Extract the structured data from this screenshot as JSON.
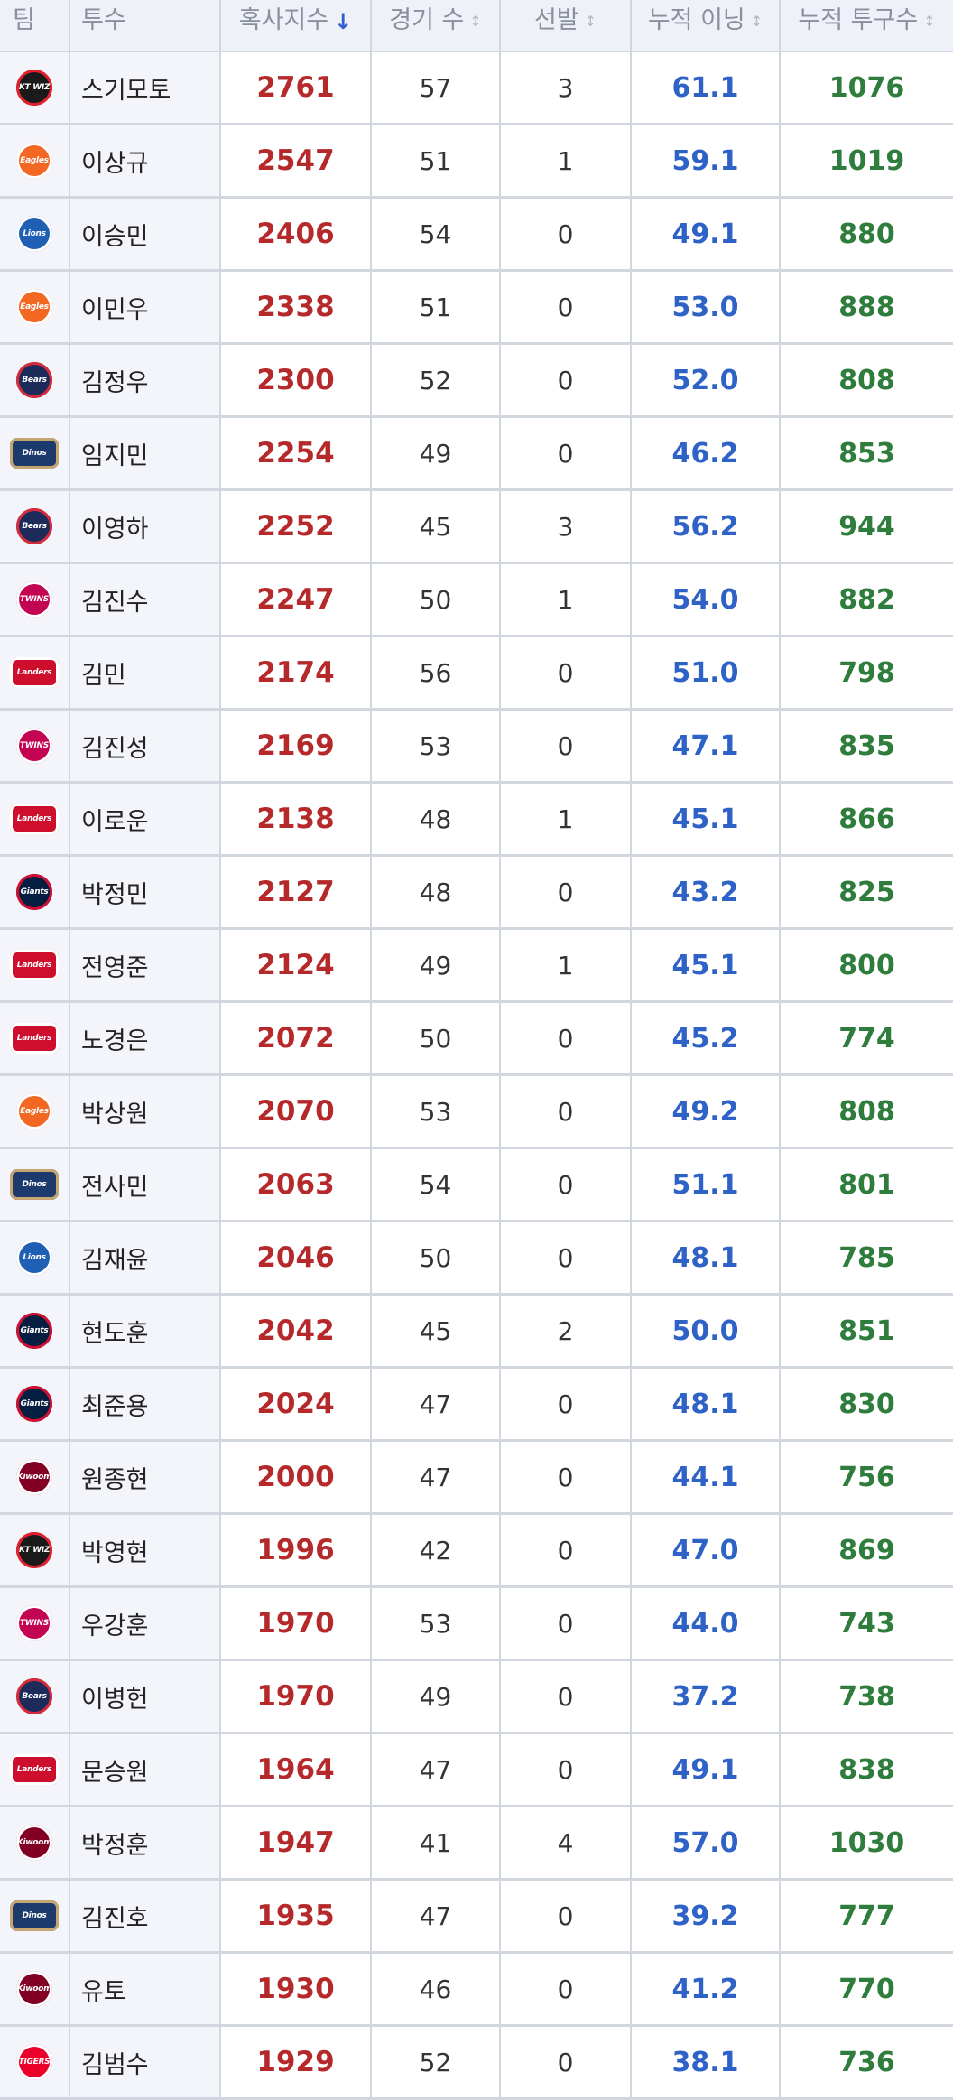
{
  "headers": {
    "team": "팀",
    "pitcher": "투수",
    "index": "혹사지수",
    "games": "경기 수",
    "starts": "선발",
    "innings": "누적 이닝",
    "pitches": "누적 투구수"
  },
  "sort_icons": {
    "active": "arrow-down-icon",
    "inactive": "sort-arrows-icon"
  },
  "team_logos": {
    "wiz": {
      "text": "KT WIZ",
      "color": "#1a1a1a",
      "accent": "#e5202e"
    },
    "eagles": {
      "text": "Eagles",
      "color": "#f26722",
      "accent": "#ffffff"
    },
    "lions": {
      "text": "Lions",
      "color": "#1f5fb4",
      "accent": "#ffffff"
    },
    "bears": {
      "text": "Bears",
      "color": "#1c2b5a",
      "accent": "#d52b3a"
    },
    "dinos": {
      "text": "Dinos",
      "color": "#1d3a6d",
      "accent": "#c5a572"
    },
    "twins": {
      "text": "TWINS",
      "color": "#c30452",
      "accent": "#ffffff"
    },
    "landers": {
      "text": "Landers",
      "color": "#ce0e2d",
      "accent": "#ffffff"
    },
    "giants": {
      "text": "Giants",
      "color": "#041e42",
      "accent": "#d00f31"
    },
    "kiwoom": {
      "text": "Kiwoom",
      "color": "#820024",
      "accent": "#ffffff"
    },
    "tigers": {
      "text": "TIGERS",
      "color": "#ea0029",
      "accent": "#ffffff"
    }
  },
  "rows": [
    {
      "team": "wiz",
      "pitcher": "스기모토",
      "index": "2761",
      "games": "57",
      "starts": "3",
      "innings": "61.1",
      "pitches": "1076"
    },
    {
      "team": "eagles",
      "pitcher": "이상규",
      "index": "2547",
      "games": "51",
      "starts": "1",
      "innings": "59.1",
      "pitches": "1019"
    },
    {
      "team": "lions",
      "pitcher": "이승민",
      "index": "2406",
      "games": "54",
      "starts": "0",
      "innings": "49.1",
      "pitches": "880"
    },
    {
      "team": "eagles",
      "pitcher": "이민우",
      "index": "2338",
      "games": "51",
      "starts": "0",
      "innings": "53.0",
      "pitches": "888"
    },
    {
      "team": "bears",
      "pitcher": "김정우",
      "index": "2300",
      "games": "52",
      "starts": "0",
      "innings": "52.0",
      "pitches": "808"
    },
    {
      "team": "dinos",
      "pitcher": "임지민",
      "index": "2254",
      "games": "49",
      "starts": "0",
      "innings": "46.2",
      "pitches": "853"
    },
    {
      "team": "bears",
      "pitcher": "이영하",
      "index": "2252",
      "games": "45",
      "starts": "3",
      "innings": "56.2",
      "pitches": "944"
    },
    {
      "team": "twins",
      "pitcher": "김진수",
      "index": "2247",
      "games": "50",
      "starts": "1",
      "innings": "54.0",
      "pitches": "882"
    },
    {
      "team": "landers",
      "pitcher": "김민",
      "index": "2174",
      "games": "56",
      "starts": "0",
      "innings": "51.0",
      "pitches": "798"
    },
    {
      "team": "twins",
      "pitcher": "김진성",
      "index": "2169",
      "games": "53",
      "starts": "0",
      "innings": "47.1",
      "pitches": "835"
    },
    {
      "team": "landers",
      "pitcher": "이로운",
      "index": "2138",
      "games": "48",
      "starts": "1",
      "innings": "45.1",
      "pitches": "866"
    },
    {
      "team": "giants",
      "pitcher": "박정민",
      "index": "2127",
      "games": "48",
      "starts": "0",
      "innings": "43.2",
      "pitches": "825"
    },
    {
      "team": "landers",
      "pitcher": "전영준",
      "index": "2124",
      "games": "49",
      "starts": "1",
      "innings": "45.1",
      "pitches": "800"
    },
    {
      "team": "landers",
      "pitcher": "노경은",
      "index": "2072",
      "games": "50",
      "starts": "0",
      "innings": "45.2",
      "pitches": "774"
    },
    {
      "team": "eagles",
      "pitcher": "박상원",
      "index": "2070",
      "games": "53",
      "starts": "0",
      "innings": "49.2",
      "pitches": "808"
    },
    {
      "team": "dinos",
      "pitcher": "전사민",
      "index": "2063",
      "games": "54",
      "starts": "0",
      "innings": "51.1",
      "pitches": "801"
    },
    {
      "team": "lions",
      "pitcher": "김재윤",
      "index": "2046",
      "games": "50",
      "starts": "0",
      "innings": "48.1",
      "pitches": "785"
    },
    {
      "team": "giants",
      "pitcher": "현도훈",
      "index": "2042",
      "games": "45",
      "starts": "2",
      "innings": "50.0",
      "pitches": "851"
    },
    {
      "team": "giants",
      "pitcher": "최준용",
      "index": "2024",
      "games": "47",
      "starts": "0",
      "innings": "48.1",
      "pitches": "830"
    },
    {
      "team": "kiwoom",
      "pitcher": "원종현",
      "index": "2000",
      "games": "47",
      "starts": "0",
      "innings": "44.1",
      "pitches": "756"
    },
    {
      "team": "wiz",
      "pitcher": "박영현",
      "index": "1996",
      "games": "42",
      "starts": "0",
      "innings": "47.0",
      "pitches": "869"
    },
    {
      "team": "twins",
      "pitcher": "우강훈",
      "index": "1970",
      "games": "53",
      "starts": "0",
      "innings": "44.0",
      "pitches": "743"
    },
    {
      "team": "bears",
      "pitcher": "이병헌",
      "index": "1970",
      "games": "49",
      "starts": "0",
      "innings": "37.2",
      "pitches": "738"
    },
    {
      "team": "landers",
      "pitcher": "문승원",
      "index": "1964",
      "games": "47",
      "starts": "0",
      "innings": "49.1",
      "pitches": "838"
    },
    {
      "team": "kiwoom",
      "pitcher": "박정훈",
      "index": "1947",
      "games": "41",
      "starts": "4",
      "innings": "57.0",
      "pitches": "1030"
    },
    {
      "team": "dinos",
      "pitcher": "김진호",
      "index": "1935",
      "games": "47",
      "starts": "0",
      "innings": "39.2",
      "pitches": "777"
    },
    {
      "team": "kiwoom",
      "pitcher": "유토",
      "index": "1930",
      "games": "46",
      "starts": "0",
      "innings": "41.2",
      "pitches": "770"
    },
    {
      "team": "tigers",
      "pitcher": "김범수",
      "index": "1929",
      "games": "52",
      "starts": "0",
      "innings": "38.1",
      "pitches": "736"
    }
  ]
}
